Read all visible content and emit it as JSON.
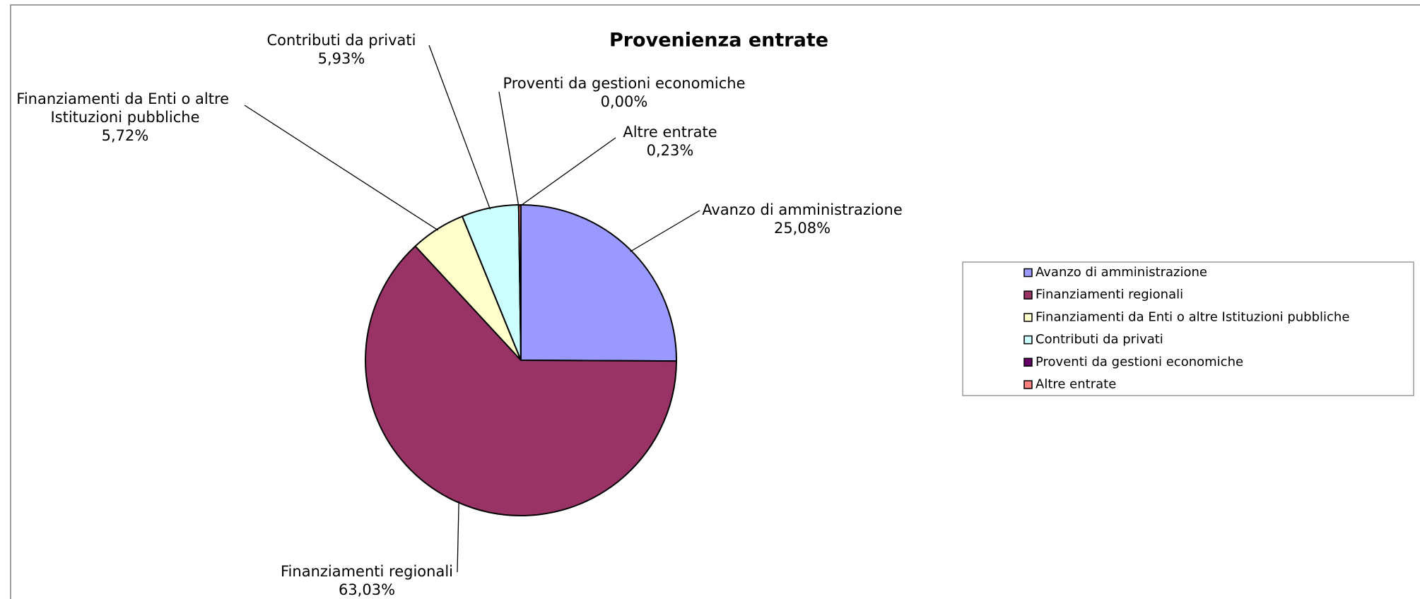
{
  "chart_data": {
    "type": "pie",
    "title": "Provenienza entrate",
    "categories": [
      "Avanzo di amministrazione",
      "Finanziamenti regionali",
      "Finanziamenti da Enti o altre Istituzioni pubbliche",
      "Contributi da privati",
      "Proventi da gestioni economiche",
      "Altre entrate"
    ],
    "values": [
      25.08,
      63.03,
      5.72,
      5.93,
      0.0,
      0.23
    ],
    "value_labels": [
      "25,08%",
      "63,03%",
      "5,72%",
      "5,93%",
      "0,00%",
      "0,23%"
    ],
    "colors": [
      "#9999ff",
      "#993366",
      "#ffffcc",
      "#ccffff",
      "#660066",
      "#ff8080"
    ],
    "legend": "right"
  }
}
